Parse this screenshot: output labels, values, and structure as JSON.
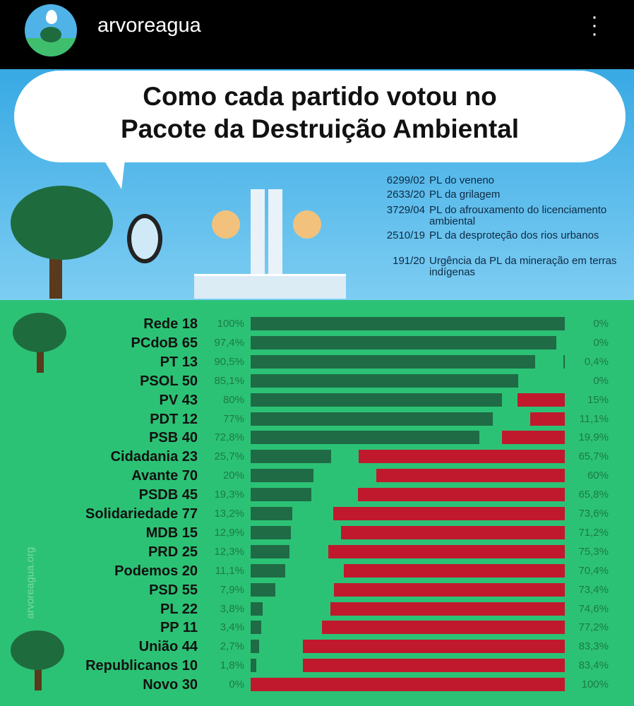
{
  "header": {
    "username": "arvoreagua",
    "more_icon": "vertical-ellipsis-icon"
  },
  "infographic": {
    "title_line1": "Como cada partido votou no",
    "title_line2": "Pacote da Destruição Ambiental",
    "legend": [
      {
        "code": "6299/02",
        "text": "PL do veneno"
      },
      {
        "code": "2633/20",
        "text": "PL da grilagem"
      },
      {
        "code": "3729/04",
        "text": "PL do afrouxamento do licenciamento ambiental"
      },
      {
        "code": "2510/19",
        "text": "PL da desproteção dos rios urbanos"
      },
      {
        "code": "191/20",
        "text": "Urgência da PL da mineração em terras indígenas"
      }
    ],
    "watermark": "arvoreagua.org"
  },
  "chart_data": {
    "type": "bar",
    "orientation": "horizontal diverging",
    "categories": [
      "Rede 18",
      "PCdoB 65",
      "PT 13",
      "PSOL 50",
      "PV 43",
      "PDT 12",
      "PSB 40",
      "Cidadania 23",
      "Avante 70",
      "PSDB 45",
      "Solidariedade 77",
      "MDB 15",
      "PRD 25",
      "Podemos 20",
      "PSD 55",
      "PL 22",
      "PP 11",
      "União 44",
      "Republicanos 10",
      "Novo 30"
    ],
    "series": [
      {
        "color": "#1f6b45",
        "values": [
          100,
          97.4,
          90.5,
          85.1,
          80,
          77,
          72.8,
          25.7,
          20,
          19.3,
          13.2,
          12.9,
          12.3,
          11.1,
          7.9,
          3.8,
          3.4,
          2.7,
          1.8,
          0
        ],
        "labels": [
          "100%",
          "97,4%",
          "90,5%",
          "85,1%",
          "80%",
          "77%",
          "72,8%",
          "25,7%",
          "20%",
          "19,3%",
          "13,2%",
          "12,9%",
          "12,3%",
          "11,1%",
          "7,9%",
          "3,8%",
          "3,4%",
          "2,7%",
          "1,8%",
          "0%"
        ]
      },
      {
        "color": "#c0192e",
        "values": [
          0,
          0,
          0.4,
          0,
          15,
          11.1,
          19.9,
          65.7,
          60,
          65.8,
          73.6,
          71.2,
          75.3,
          70.4,
          73.4,
          74.6,
          77.2,
          83.3,
          83.4,
          100
        ],
        "labels": [
          "0%",
          "0%",
          "0,4%",
          "0%",
          "15%",
          "11,1%",
          "19,9%",
          "65,7%",
          "60%",
          "65,8%",
          "73,6%",
          "71,2%",
          "75,3%",
          "70,4%",
          "73,4%",
          "74,6%",
          "77,2%",
          "83,3%",
          "83,4%",
          "100%"
        ]
      }
    ],
    "xlim": [
      0,
      100
    ]
  }
}
